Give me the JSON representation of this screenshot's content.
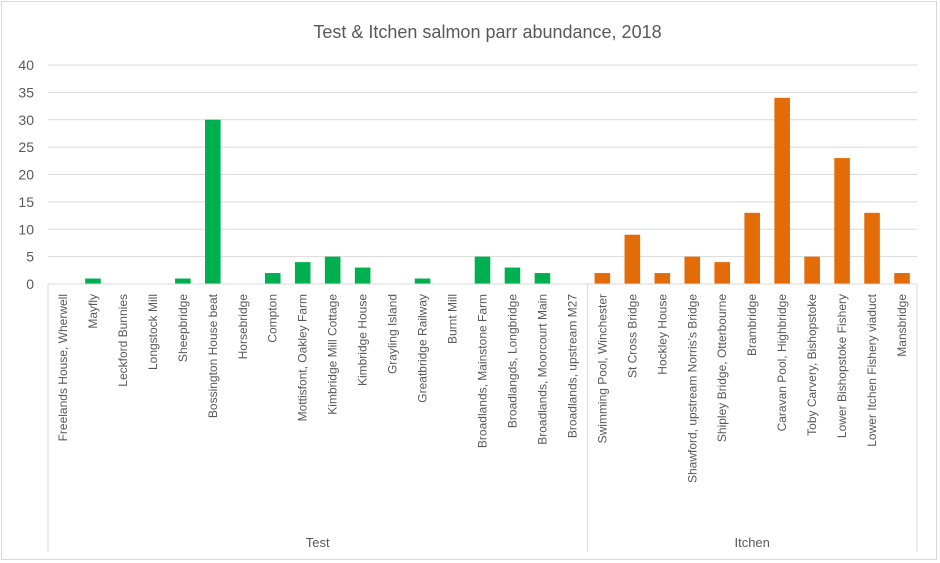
{
  "chart_data": {
    "type": "bar",
    "title": "Test & Itchen salmon parr abundance, 2018",
    "ylim": [
      0,
      40
    ],
    "yticks": [
      0,
      5,
      10,
      15,
      20,
      25,
      30,
      35,
      40
    ],
    "grid": true,
    "groups": [
      {
        "name": "Test",
        "color": "#00b050",
        "categories": [
          "Freelands House, Wherwell",
          "Mayfly",
          "Leckford Bunnies",
          "Longstock Mill",
          "Sheepbridge",
          "Bossington House beat",
          "Horsebridge",
          "Compton",
          "Mottisfont, Oakley Farm",
          "Kimbridge Mill Cottage",
          "Kimbridge House",
          "Grayling Island",
          "Greatbridge Railway",
          "Burnt Mill",
          "Broadlands, Mainstone Farm",
          "Broadlangds, Longbridge",
          "Broadlands, Moorcourt Main",
          "Broadlands, upstream M27"
        ],
        "values": [
          0,
          1,
          0,
          0,
          1,
          30,
          0,
          2,
          4,
          5,
          3,
          0,
          1,
          0,
          5,
          3,
          2,
          0
        ]
      },
      {
        "name": "Itchen",
        "color": "#e36c09",
        "categories": [
          "Swimming Pool, Winchester",
          "St Cross Bridge",
          "Hockley House",
          "Shawford, upstream Norris's Bridge",
          "Shipley Bridge, Otterbourne",
          "Brambridge",
          "Caravan Pool, Highbridge",
          "Toby Carvery, Bishopstoke",
          "Lower Bishopstoke Fishery",
          "Lower Itchen Fishery viaduct",
          "Mansbridge"
        ],
        "values": [
          2,
          9,
          2,
          5,
          4,
          13,
          34,
          5,
          23,
          13,
          2
        ]
      }
    ]
  }
}
